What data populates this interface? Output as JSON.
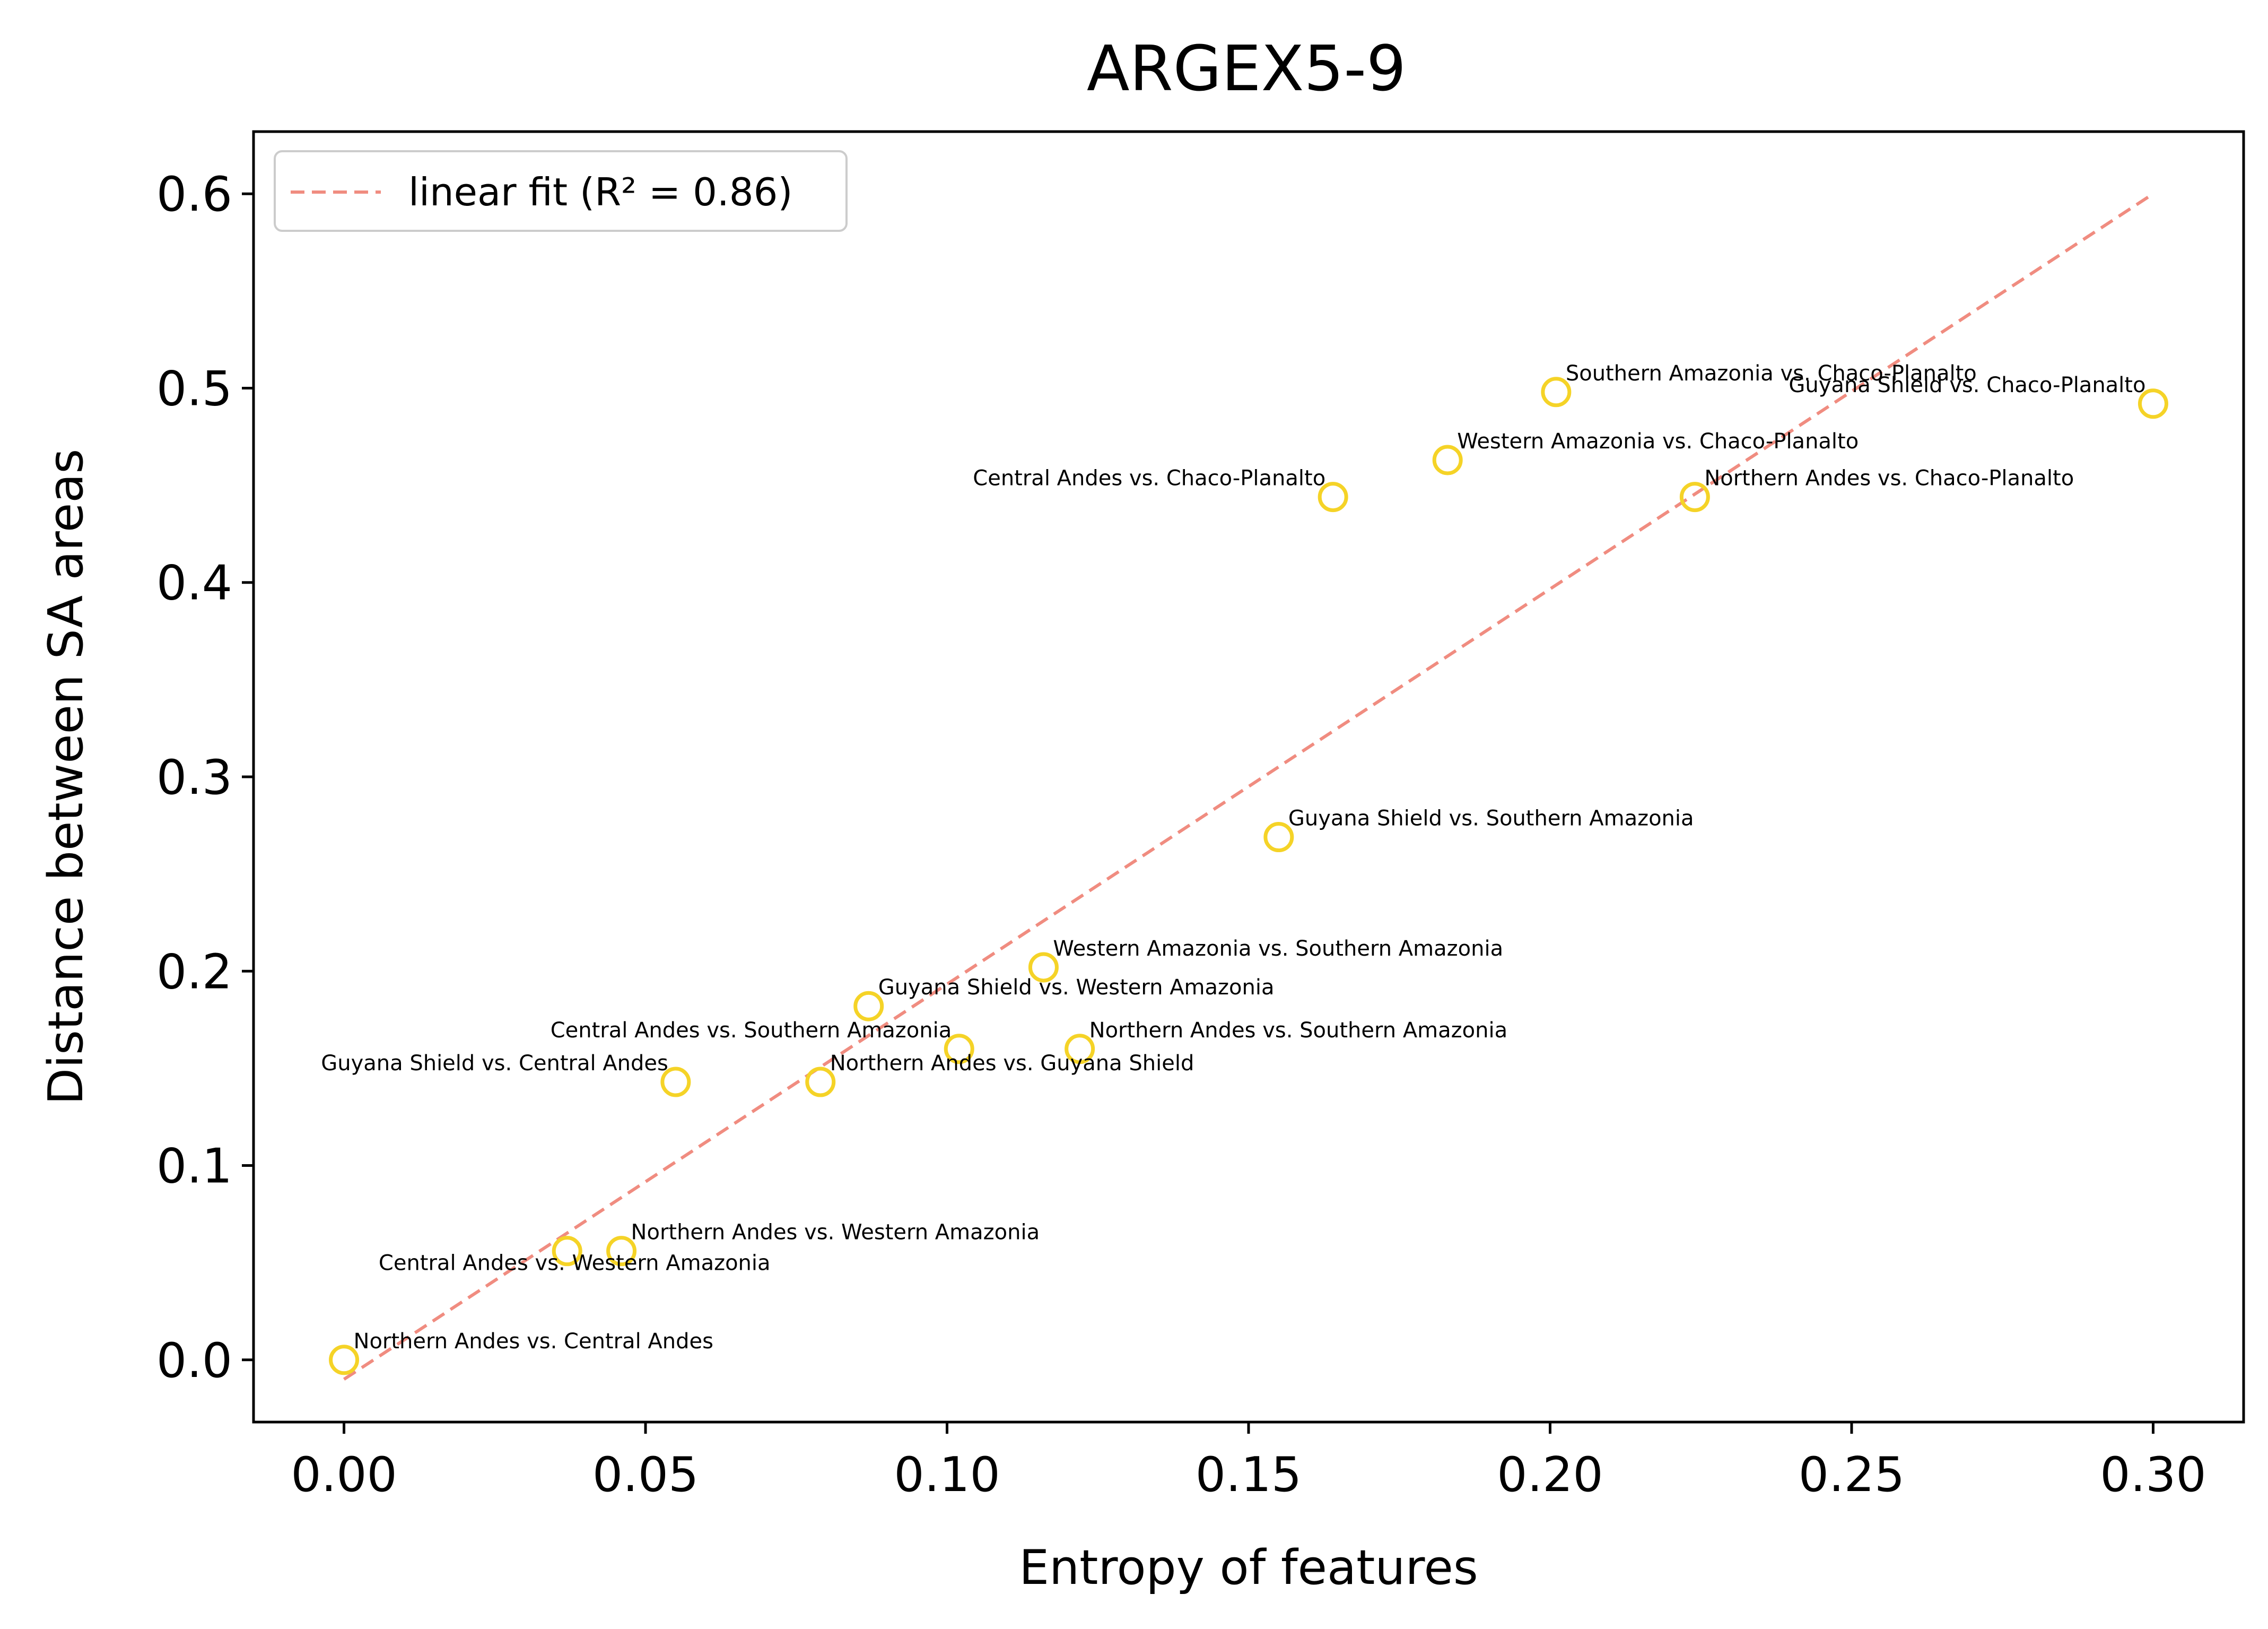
{
  "chart_data": {
    "type": "scatter",
    "title": "ARGEX5-9",
    "xlabel": "Entropy of features",
    "ylabel": "Distance between SA areas",
    "xlim": [
      -0.015,
      0.315
    ],
    "ylim": [
      -0.032,
      0.632
    ],
    "xticks": [
      0.0,
      0.05,
      0.1,
      0.15,
      0.2,
      0.25,
      0.3
    ],
    "xtick_labels": [
      "0.00",
      "0.05",
      "0.10",
      "0.15",
      "0.20",
      "0.25",
      "0.30"
    ],
    "yticks": [
      0.0,
      0.1,
      0.2,
      0.3,
      0.4,
      0.5,
      0.6
    ],
    "ytick_labels": [
      "0.0",
      "0.1",
      "0.2",
      "0.3",
      "0.4",
      "0.5",
      "0.6"
    ],
    "grid": false,
    "legend": {
      "placement": "upper-left",
      "entries": [
        {
          "label": "linear fit (R² = 0.86)",
          "style": "dashed",
          "color": "#f08c80"
        }
      ]
    },
    "marker_color": "#f5d327",
    "fit_line": {
      "x": [
        0.0,
        0.3
      ],
      "y": [
        -0.01,
        0.6
      ],
      "color": "#f08c80",
      "label": "linear fit (R² = 0.86)"
    },
    "points": [
      {
        "x": 0.0,
        "y": 0.0,
        "label": "Northern Andes vs. Central Andes",
        "anchor": "start"
      },
      {
        "x": 0.037,
        "y": 0.056,
        "label": "Central Andes vs. Western Amazonia",
        "anchor": "middle"
      },
      {
        "x": 0.046,
        "y": 0.056,
        "label": "Northern Andes vs. Western Amazonia",
        "anchor": "start"
      },
      {
        "x": 0.055,
        "y": 0.143,
        "label": "Guyana Shield vs. Central Andes",
        "anchor": "end"
      },
      {
        "x": 0.079,
        "y": 0.143,
        "label": "Northern Andes vs. Guyana Shield",
        "anchor": "start"
      },
      {
        "x": 0.087,
        "y": 0.182,
        "label": "Guyana Shield vs. Western Amazonia",
        "anchor": "start"
      },
      {
        "x": 0.102,
        "y": 0.16,
        "label": "Central Andes vs. Southern Amazonia",
        "anchor": "end"
      },
      {
        "x": 0.116,
        "y": 0.202,
        "label": "Western Amazonia vs. Southern Amazonia",
        "anchor": "start"
      },
      {
        "x": 0.122,
        "y": 0.16,
        "label": "Northern Andes vs. Southern Amazonia",
        "anchor": "start"
      },
      {
        "x": 0.155,
        "y": 0.269,
        "label": "Guyana Shield vs. Southern Amazonia",
        "anchor": "start"
      },
      {
        "x": 0.164,
        "y": 0.444,
        "label": "Central Andes vs. Chaco-Planalto",
        "anchor": "end"
      },
      {
        "x": 0.183,
        "y": 0.463,
        "label": "Western Amazonia vs. Chaco-Planalto",
        "anchor": "start"
      },
      {
        "x": 0.201,
        "y": 0.498,
        "label": "Southern Amazonia vs. Chaco-Planalto",
        "anchor": "start"
      },
      {
        "x": 0.224,
        "y": 0.444,
        "label": "Northern Andes vs. Chaco-Planalto",
        "anchor": "start"
      },
      {
        "x": 0.3,
        "y": 0.492,
        "label": "Guyana Shield vs. Chaco-Planalto",
        "anchor": "end"
      }
    ]
  }
}
